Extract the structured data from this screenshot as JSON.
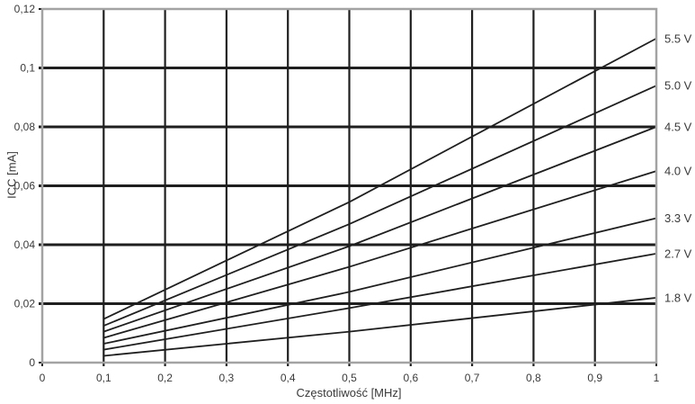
{
  "chart_data": {
    "type": "line",
    "title": "",
    "xlabel": "Częstotliwość [MHz]",
    "ylabel": "ICC [mA]",
    "xlim": [
      0,
      1
    ],
    "ylim": [
      0,
      0.12
    ],
    "grid": true,
    "legend_position": "labels at right ends of lines",
    "x_tick_values": [
      0,
      0.1,
      0.2,
      0.3,
      0.4,
      0.5,
      0.6,
      0.7,
      0.8,
      0.9,
      1
    ],
    "x_tick_labels": [
      "0",
      "0,1",
      "0,2",
      "0,3",
      "0,4",
      "0,5",
      "0,6",
      "0,7",
      "0,8",
      "0,9",
      "1"
    ],
    "y_tick_values": [
      0,
      0.02,
      0.04,
      0.06,
      0.08,
      0.1,
      0.12
    ],
    "y_tick_labels": [
      "0",
      "0,02",
      "0,04",
      "0,06",
      "0,08",
      "0,1",
      "0,12"
    ],
    "x": [
      0.1,
      0.5,
      1.0
    ],
    "series": [
      {
        "name": "5.5 V",
        "values": [
          0.0148,
          0.0545,
          0.11
        ]
      },
      {
        "name": "5.0 V",
        "values": [
          0.0125,
          0.047,
          0.094
        ]
      },
      {
        "name": "4.5 V",
        "values": [
          0.0105,
          0.0395,
          0.08
        ]
      },
      {
        "name": "4.0 V",
        "values": [
          0.0084,
          0.0325,
          0.065
        ]
      },
      {
        "name": "3.3 V",
        "values": [
          0.0064,
          0.024,
          0.049
        ]
      },
      {
        "name": "2.7 V",
        "values": [
          0.0044,
          0.0185,
          0.037
        ]
      },
      {
        "name": "1.8 V",
        "values": [
          0.0023,
          0.0105,
          0.022
        ]
      }
    ]
  },
  "style": {
    "background": "#ffffff",
    "frame_color": "#a3a3a3",
    "grid_color": "#1f1f1f",
    "series_color": "#1f1f1f",
    "text_color": "#3a3a3a"
  }
}
